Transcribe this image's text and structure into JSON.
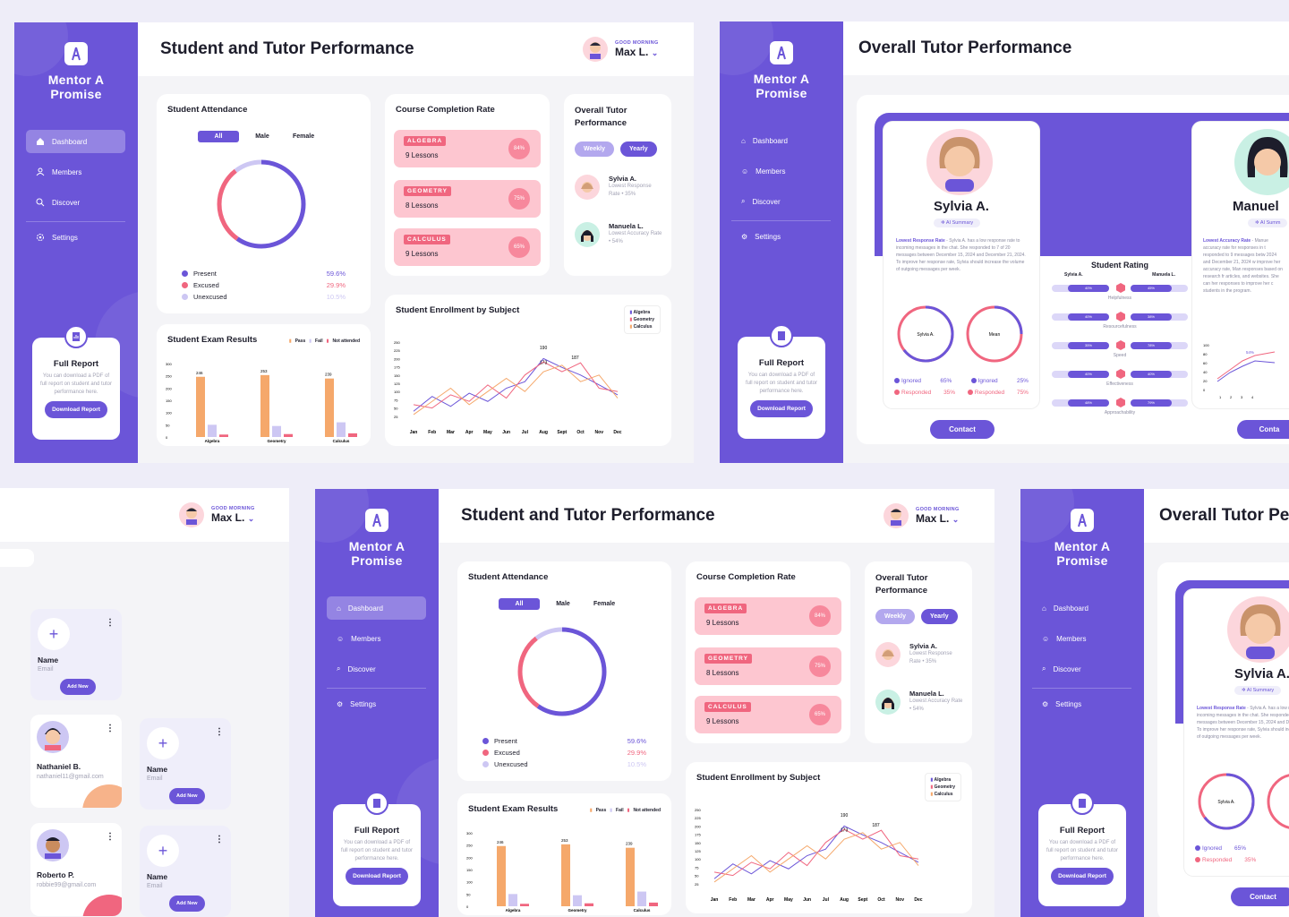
{
  "brand": {
    "line1": "Mentor A",
    "line2": "Promise"
  },
  "nav": {
    "dashboard": "Dashboard",
    "members": "Members",
    "discover": "Discover",
    "settings": "Settings"
  },
  "report": {
    "title": "Full Report",
    "desc": "You can download a PDF of full report on student and tutor performance here.",
    "button": "Download Report"
  },
  "user": {
    "greeting": "GOOD MORNING",
    "name": "Max L."
  },
  "dashboard": {
    "title": "Student and Tutor Performance",
    "attendance": {
      "title": "Student Attendance",
      "filters": [
        "All",
        "Male",
        "Female"
      ],
      "rows": [
        {
          "label": "Present",
          "value": "59.6%",
          "color": "#6b55d8"
        },
        {
          "label": "Excused",
          "value": "29.9%",
          "color": "#f0667f"
        },
        {
          "label": "Unexcused",
          "value": "10.5%",
          "color": "#cdc7f3"
        }
      ]
    },
    "completion": {
      "title": "Course Completion Rate",
      "courses": [
        {
          "tag": "ALGEBRA",
          "lessons": "9 Lessons",
          "pct": "84%"
        },
        {
          "tag": "GEOMETRY",
          "lessons": "8 Lessons",
          "pct": "75%"
        },
        {
          "tag": "CALCULUS",
          "lessons": "9 Lessons",
          "pct": "65%"
        }
      ]
    },
    "overall": {
      "title": "Overall Tutor Performance",
      "weekly": "Weekly",
      "yearly": "Yearly",
      "tutors": [
        {
          "name": "Sylvia A.",
          "sub": "Lowest Response Rate • 35%"
        },
        {
          "name": "Manuela L.",
          "sub": "Lowest Accuracy Rate • 54%"
        }
      ]
    },
    "exam": {
      "title": "Student Exam Results",
      "legend": [
        "Pass",
        "Fail",
        "Not attended"
      ],
      "yticks": [
        "300",
        "250",
        "200",
        "150",
        "100",
        "50",
        "0"
      ],
      "groups": [
        {
          "label": "Algebra",
          "pass": 246,
          "fail": 50,
          "na": 10
        },
        {
          "label": "Geometry",
          "pass": 253,
          "fail": 45,
          "na": 12
        },
        {
          "label": "Calculus",
          "pass": 239,
          "fail": 60,
          "na": 15
        }
      ]
    },
    "enrollment": {
      "title": "Student Enrollment by Subject",
      "legend": [
        "Algebra",
        "Geometry",
        "Calculus"
      ],
      "months": [
        "Jan",
        "Feb",
        "Mar",
        "Apr",
        "May",
        "Jun",
        "Jul",
        "Aug",
        "Sept",
        "Oct",
        "Nov",
        "Dec"
      ],
      "yticks": [
        "250",
        "225",
        "200",
        "175",
        "150",
        "125",
        "100",
        "75",
        "50",
        "25"
      ],
      "annotations": [
        "190",
        "173",
        "187"
      ]
    }
  },
  "tutor_page": {
    "title": "Overall Tutor Performance",
    "sylvia": {
      "name": "Sylvia A.",
      "summary": "AI Summary",
      "note_title": "Lowest Response Rate",
      "note": " - Sylvia A. has a low response rate to incoming messages in the chat. She responded to 7 of 20 messages between December 15, 2024 and December 21, 2024. To improve her response rate, Sylvia should increase the volume of outgoing messages per week.",
      "ring1": "Sylvia A.",
      "ring2": "Mean",
      "ignored": "Ignored",
      "responded": "Responded",
      "v1": "65%",
      "v2": "35%",
      "v3": "25%",
      "v4": "75%",
      "contact": "Contact"
    },
    "rating": {
      "title": "Student Rating",
      "left": "Sylvia A.",
      "right": "Manuela L.",
      "rows": [
        {
          "label": "Helpfulness",
          "l": "40%",
          "r": "45%"
        },
        {
          "label": "Resourcefulness",
          "l": "40%",
          "r": "38%"
        },
        {
          "label": "Speed",
          "l": "35%",
          "r": "78%"
        },
        {
          "label": "Effectiveness",
          "l": "40%",
          "r": "40%"
        },
        {
          "label": "Approachability",
          "l": "48%",
          "r": "79%"
        }
      ]
    },
    "manuela": {
      "name": "Manuel",
      "summary": "AI Summ",
      "note_title": "Lowest Accuracy Rate",
      "note": " - Manue accuracy rate for responses in t responded to 9 messages betw 2024 and December 21, 2024 w improve her accuracy rate, Man responses based on research fr articles, and websites. She can her responses to improve her c students in the program.",
      "contact": "Conta",
      "chart_yticks": [
        "100",
        "80",
        "60",
        "40",
        "20",
        "0"
      ],
      "chart_x": [
        "1",
        "2",
        "3",
        "4"
      ],
      "chart_label": "54%"
    }
  },
  "members": {
    "add": {
      "name": "Name",
      "email": "Email",
      "button": "Add New"
    },
    "list": [
      {
        "name": "Nathaniel B.",
        "email": "nathaniel11@gmail.com"
      },
      {
        "name": "Roberto P.",
        "email": "robbie99@gmail.com"
      }
    ]
  }
}
